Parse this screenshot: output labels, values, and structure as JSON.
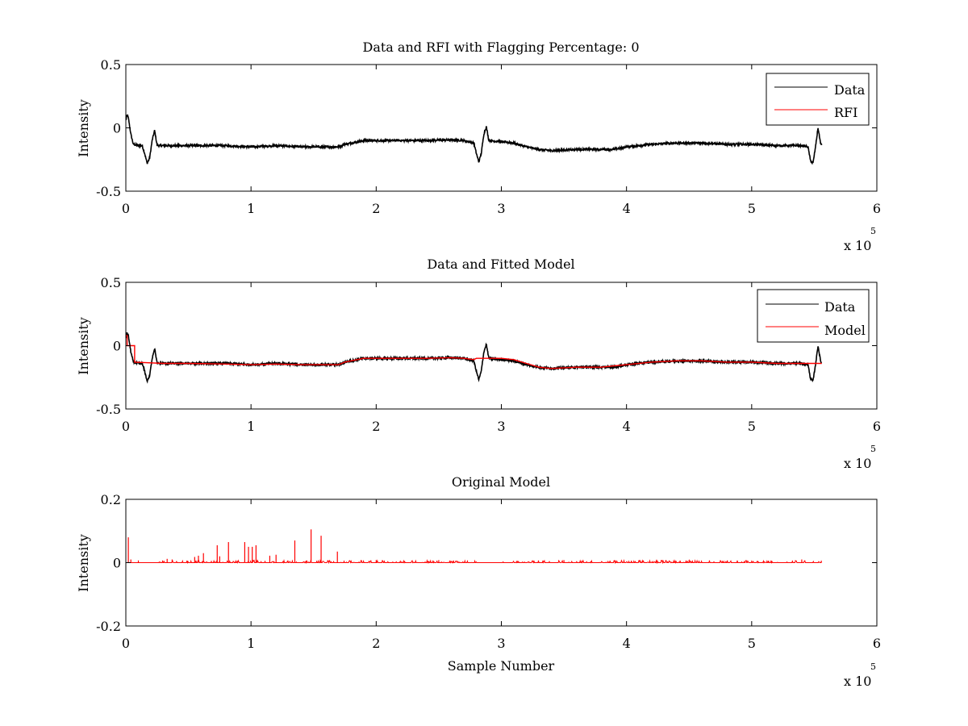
{
  "figure": {
    "background": "#ffffff"
  },
  "chart_data": [
    {
      "type": "line",
      "title": "Data and RFI with Flagging Percentage: 0",
      "xlabel": "",
      "ylabel": "Intensity",
      "xlim": [
        0,
        6
      ],
      "ylim": [
        -0.5,
        0.5
      ],
      "x_exponent": {
        "base": "x 10",
        "power": "5"
      },
      "xticks": [
        "0",
        "1",
        "2",
        "3",
        "4",
        "5",
        "6"
      ],
      "yticks": [
        "-0.5",
        "0",
        "0.5"
      ],
      "grid": false,
      "legend": {
        "placement": "top-right",
        "entries": [
          "Data",
          "RFI"
        ]
      },
      "series": [
        {
          "name": "Data",
          "color": "#000000",
          "noise": 0.008,
          "x": [
            0,
            0.01,
            0.02,
            0.04,
            0.06,
            0.1,
            0.13,
            0.15,
            0.17,
            0.19,
            0.21,
            0.23,
            0.25,
            0.3,
            0.5,
            0.8,
            1.0,
            1.2,
            1.4,
            1.5,
            1.7,
            1.75,
            1.8,
            1.9,
            2.0,
            2.2,
            2.4,
            2.6,
            2.7,
            2.78,
            2.8,
            2.82,
            2.84,
            2.86,
            2.88,
            2.9,
            3.0,
            3.1,
            3.2,
            3.3,
            3.4,
            3.6,
            3.8,
            3.9,
            4.0,
            4.2,
            4.4,
            4.6,
            4.8,
            5.0,
            5.2,
            5.4,
            5.45,
            5.47,
            5.49,
            5.51,
            5.53,
            5.55,
            5.56
          ],
          "y": [
            0.06,
            0.1,
            0.08,
            -0.05,
            -0.13,
            -0.14,
            -0.14,
            -0.2,
            -0.28,
            -0.24,
            -0.1,
            -0.02,
            -0.14,
            -0.14,
            -0.14,
            -0.14,
            -0.15,
            -0.14,
            -0.15,
            -0.15,
            -0.15,
            -0.13,
            -0.12,
            -0.1,
            -0.1,
            -0.1,
            -0.1,
            -0.095,
            -0.1,
            -0.12,
            -0.2,
            -0.27,
            -0.2,
            -0.05,
            0.01,
            -0.1,
            -0.11,
            -0.12,
            -0.15,
            -0.17,
            -0.18,
            -0.17,
            -0.17,
            -0.17,
            -0.15,
            -0.13,
            -0.12,
            -0.12,
            -0.13,
            -0.13,
            -0.14,
            -0.14,
            -0.15,
            -0.26,
            -0.28,
            -0.15,
            0.0,
            -0.12,
            -0.14
          ]
        },
        {
          "name": "RFI",
          "color": "#ff0000",
          "x": [],
          "y": []
        }
      ]
    },
    {
      "type": "line",
      "title": "Data and Fitted Model",
      "xlabel": "",
      "ylabel": "Intensity",
      "xlim": [
        0,
        6
      ],
      "ylim": [
        -0.5,
        0.5
      ],
      "x_exponent": {
        "base": "x 10",
        "power": "5"
      },
      "xticks": [
        "0",
        "1",
        "2",
        "3",
        "4",
        "5",
        "6"
      ],
      "yticks": [
        "-0.5",
        "0",
        "0.5"
      ],
      "grid": false,
      "legend": {
        "placement": "top-right",
        "entries": [
          "Data",
          "Model"
        ]
      },
      "series": [
        {
          "name": "Data",
          "color": "#000000",
          "noise": 0.008,
          "x": [
            0,
            0.01,
            0.02,
            0.04,
            0.06,
            0.1,
            0.13,
            0.15,
            0.17,
            0.19,
            0.21,
            0.23,
            0.25,
            0.3,
            0.5,
            0.8,
            1.0,
            1.2,
            1.4,
            1.5,
            1.7,
            1.75,
            1.8,
            1.9,
            2.0,
            2.2,
            2.4,
            2.6,
            2.7,
            2.78,
            2.8,
            2.82,
            2.84,
            2.86,
            2.88,
            2.9,
            3.0,
            3.1,
            3.2,
            3.3,
            3.4,
            3.6,
            3.8,
            3.9,
            4.0,
            4.2,
            4.4,
            4.6,
            4.8,
            5.0,
            5.2,
            5.4,
            5.45,
            5.47,
            5.49,
            5.51,
            5.53,
            5.55,
            5.56
          ],
          "y": [
            0.06,
            0.1,
            0.08,
            -0.05,
            -0.13,
            -0.14,
            -0.14,
            -0.2,
            -0.28,
            -0.24,
            -0.1,
            -0.02,
            -0.14,
            -0.14,
            -0.14,
            -0.14,
            -0.15,
            -0.14,
            -0.15,
            -0.15,
            -0.15,
            -0.13,
            -0.12,
            -0.1,
            -0.1,
            -0.1,
            -0.1,
            -0.095,
            -0.1,
            -0.12,
            -0.2,
            -0.27,
            -0.2,
            -0.05,
            0.01,
            -0.1,
            -0.11,
            -0.12,
            -0.15,
            -0.17,
            -0.18,
            -0.17,
            -0.17,
            -0.17,
            -0.15,
            -0.13,
            -0.12,
            -0.12,
            -0.13,
            -0.13,
            -0.14,
            -0.14,
            -0.15,
            -0.26,
            -0.28,
            -0.15,
            0.0,
            -0.12,
            -0.14
          ]
        },
        {
          "name": "Model",
          "color": "#ff0000",
          "x": [
            0,
            0.01,
            0.01,
            0.07,
            0.07,
            0.3,
            0.5,
            0.8,
            1.0,
            1.2,
            1.4,
            1.5,
            1.7,
            1.75,
            1.8,
            1.9,
            2.0,
            2.2,
            2.4,
            2.6,
            2.7,
            2.78,
            2.8,
            3.0,
            3.1,
            3.2,
            3.3,
            3.4,
            3.6,
            3.8,
            3.9,
            4.0,
            4.2,
            4.4,
            4.6,
            4.8,
            5.0,
            5.2,
            5.4,
            5.5,
            5.56
          ],
          "y": [
            0.08,
            0.08,
            0.0,
            0.0,
            -0.13,
            -0.14,
            -0.14,
            -0.145,
            -0.15,
            -0.145,
            -0.15,
            -0.15,
            -0.15,
            -0.13,
            -0.12,
            -0.1,
            -0.1,
            -0.1,
            -0.1,
            -0.095,
            -0.1,
            -0.11,
            -0.1,
            -0.1,
            -0.11,
            -0.14,
            -0.17,
            -0.18,
            -0.17,
            -0.17,
            -0.16,
            -0.15,
            -0.13,
            -0.12,
            -0.12,
            -0.13,
            -0.13,
            -0.14,
            -0.14,
            -0.14,
            -0.14
          ]
        }
      ]
    },
    {
      "type": "line",
      "title": "Original Model",
      "xlabel": "Sample Number",
      "ylabel": "Intensity",
      "xlim": [
        0,
        6
      ],
      "ylim": [
        -0.2,
        0.2
      ],
      "x_exponent": {
        "base": "x 10",
        "power": "5"
      },
      "xticks": [
        "0",
        "1",
        "2",
        "3",
        "4",
        "5",
        "6"
      ],
      "yticks": [
        "-0.2",
        "0",
        "0.2"
      ],
      "grid": false,
      "series": [
        {
          "name": "",
          "color": "#ff0000",
          "baseline": {
            "x": [
              0,
              5.56
            ],
            "y": [
              0,
              0
            ]
          },
          "spikes": {
            "x": [
              0.02,
              0.04,
              0.1,
              0.33,
              0.37,
              0.55,
              0.58,
              0.62,
              0.73,
              0.75,
              0.82,
              0.95,
              0.98,
              1.01,
              1.04,
              1.15,
              1.2,
              1.35,
              1.48,
              1.56,
              1.69,
              2.0,
              2.5,
              3.5,
              4.5,
              5.4
            ],
            "y": [
              0.08,
              0.01,
              0.007,
              0.012,
              0.01,
              0.018,
              0.022,
              0.03,
              0.055,
              0.02,
              0.065,
              0.065,
              0.05,
              0.05,
              0.055,
              0.022,
              0.025,
              0.07,
              0.105,
              0.085,
              0.035,
              0.008,
              0.008,
              0.008,
              0.008,
              0.01
            ]
          },
          "noise": 0.007
        }
      ]
    }
  ]
}
